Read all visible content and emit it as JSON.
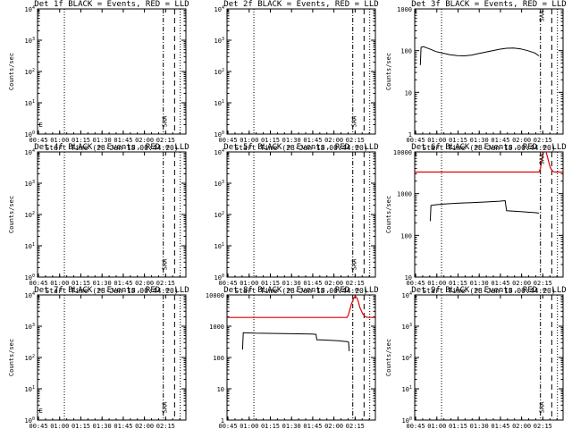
{
  "colors": {
    "events": "#000000",
    "lld": "#e00000",
    "axes": "#000000",
    "background": "#ffffff"
  },
  "x_tick_labels": [
    "00:45",
    "01:00",
    "01:15",
    "01:30",
    "01:45",
    "02:00",
    "02:15"
  ],
  "x_label": "Start Time (28-Jan-18 00:44:20)",
  "y_label": "Counts/sec",
  "chart_data": [
    {
      "type": "line",
      "title": "Det 1f BLACK = Events, RED = LLD",
      "xlabel": "Start Time (28-Jan-18 00:44:20)",
      "ylabel": "Counts/sec",
      "x_unit": "minutes since 00:44:20",
      "xlim": [
        0,
        105
      ],
      "y_scale": "log",
      "ylim": [
        1,
        10000
      ],
      "y_tick_labels": [
        "10^0",
        "10^1",
        "10^2",
        "10^3",
        "10^4"
      ],
      "legend": "none",
      "vlines": [
        {
          "x": 19,
          "style": "dotted"
        },
        {
          "x": 89,
          "style": "dashdot"
        },
        {
          "x": 97,
          "style": "dashed"
        },
        {
          "x": 101,
          "style": "dotted"
        }
      ],
      "annotations": [
        {
          "text": "SAA",
          "x": 89
        },
        {
          "text": "E",
          "x": 0.5
        }
      ],
      "series": []
    },
    {
      "type": "line",
      "title": "Det 2f BLACK = Events, RED = LLD",
      "xlabel": "Start Time (28-Jan-18 00:44:20)",
      "ylabel": "",
      "x_unit": "minutes since 00:44:20",
      "xlim": [
        0,
        105
      ],
      "y_scale": "log",
      "ylim": [
        1,
        10000
      ],
      "y_tick_labels": [
        "10^0",
        "10^1",
        "10^2",
        "10^3",
        "10^4"
      ],
      "legend": "none",
      "vlines": [
        {
          "x": 19,
          "style": "dotted"
        },
        {
          "x": 89,
          "style": "dashdot"
        },
        {
          "x": 97,
          "style": "dashed"
        },
        {
          "x": 101,
          "style": "dotted"
        }
      ],
      "annotations": [
        {
          "text": "SAA",
          "x": 89
        }
      ],
      "series": []
    },
    {
      "type": "line",
      "title": "Det 3f BLACK = Events, RED = LLD",
      "xlabel": "Start Time (28-Jan-18 00:44:20)",
      "ylabel": "Counts/sec",
      "x_unit": "minutes since 00:44:20",
      "xlim": [
        0,
        105
      ],
      "y_scale": "log",
      "ylim": [
        1,
        1000
      ],
      "y_tick_labels": [
        "1",
        "10",
        "100",
        "1000"
      ],
      "legend": "none",
      "vlines": [
        {
          "x": 19,
          "style": "dotted"
        },
        {
          "x": 89,
          "style": "dashdot"
        },
        {
          "x": 97,
          "style": "dashed"
        },
        {
          "x": 101,
          "style": "dotted"
        }
      ],
      "annotations": [
        {
          "text": "SAA",
          "x": 89
        }
      ],
      "series": [
        {
          "color": "#000000",
          "x": [
            4,
            4.5,
            6,
            9,
            12,
            15,
            20,
            25,
            30,
            35,
            40,
            45,
            50,
            55,
            60,
            65,
            70,
            75,
            80,
            85,
            88
          ],
          "y": [
            45,
            120,
            125,
            115,
            105,
            95,
            87,
            80,
            76,
            75,
            78,
            85,
            92,
            100,
            108,
            114,
            116,
            110,
            100,
            88,
            75
          ]
        }
      ]
    },
    {
      "type": "line",
      "title": "Det 4f BLACK = Events, RED = LLD",
      "xlabel": "Start Time (28-Jan-18 00:44:20)",
      "ylabel": "Counts/sec",
      "x_unit": "minutes since 00:44:20",
      "xlim": [
        0,
        105
      ],
      "y_scale": "log",
      "ylim": [
        1,
        10000
      ],
      "y_tick_labels": [
        "10^0",
        "10^1",
        "10^2",
        "10^3",
        "10^4"
      ],
      "legend": "none",
      "vlines": [
        {
          "x": 19,
          "style": "dotted"
        },
        {
          "x": 89,
          "style": "dashdot"
        },
        {
          "x": 97,
          "style": "dashed"
        },
        {
          "x": 101,
          "style": "dotted"
        }
      ],
      "annotations": [
        {
          "text": "SAA",
          "x": 89
        }
      ],
      "series": []
    },
    {
      "type": "line",
      "title": "Det 5f BLACK = Events, RED = LLD",
      "xlabel": "Start Time (28-Jan-18 00:44:20)",
      "ylabel": "",
      "x_unit": "minutes since 00:44:20",
      "xlim": [
        0,
        105
      ],
      "y_scale": "log",
      "ylim": [
        1,
        10000
      ],
      "y_tick_labels": [
        "10^0",
        "10^1",
        "10^2",
        "10^3",
        "10^4"
      ],
      "legend": "none",
      "vlines": [
        {
          "x": 19,
          "style": "dotted"
        },
        {
          "x": 89,
          "style": "dashdot"
        },
        {
          "x": 97,
          "style": "dashed"
        },
        {
          "x": 101,
          "style": "dotted"
        }
      ],
      "annotations": [
        {
          "text": "SAA",
          "x": 89
        }
      ],
      "series": []
    },
    {
      "type": "line",
      "title": "Det 6f BLACK = Events, RED = LLD",
      "xlabel": "Start Time (28-Jan-18 00:44:20)",
      "ylabel": "Counts/sec",
      "x_unit": "minutes since 00:44:20",
      "xlim": [
        0,
        105
      ],
      "y_scale": "log",
      "ylim": [
        10,
        10000
      ],
      "y_tick_labels": [
        "10",
        "100",
        "1000",
        "10000"
      ],
      "legend": "none",
      "vlines": [
        {
          "x": 19,
          "style": "dotted"
        },
        {
          "x": 89,
          "style": "dashdot"
        },
        {
          "x": 97,
          "style": "dashed"
        },
        {
          "x": 101,
          "style": "dotted"
        }
      ],
      "annotations": [
        {
          "text": "SAA",
          "x": 89
        }
      ],
      "series": [
        {
          "color": "#e00000",
          "x": [
            0,
            88,
            89,
            90,
            91,
            92,
            93,
            94,
            95,
            96,
            97,
            98,
            99,
            100,
            103,
            105
          ],
          "y": [
            3300,
            3300,
            4000,
            6500,
            9500,
            11000,
            10000,
            7500,
            5500,
            4200,
            3700,
            3400,
            3300,
            3300,
            3300,
            3300
          ]
        },
        {
          "color": "#000000",
          "x": [
            11,
            11.5,
            14,
            20,
            30,
            40,
            50,
            60,
            64,
            65,
            70,
            75,
            80,
            85,
            88
          ],
          "y": [
            220,
            520,
            540,
            560,
            590,
            610,
            630,
            660,
            680,
            390,
            380,
            370,
            360,
            350,
            340
          ]
        }
      ]
    },
    {
      "type": "line",
      "title": "Det 7f BLACK = Events, RED = LLD",
      "xlabel": "Start Time (28-Jan-18 00:44:20)",
      "ylabel": "Counts/sec",
      "x_unit": "minutes since 00:44:20",
      "xlim": [
        0,
        105
      ],
      "y_scale": "log",
      "ylim": [
        1,
        10000
      ],
      "y_tick_labels": [
        "10^0",
        "10^1",
        "10^2",
        "10^3",
        "10^4"
      ],
      "legend": "none",
      "vlines": [
        {
          "x": 19,
          "style": "dotted"
        },
        {
          "x": 89,
          "style": "dashdot"
        },
        {
          "x": 97,
          "style": "dashed"
        },
        {
          "x": 101,
          "style": "dotted"
        }
      ],
      "annotations": [
        {
          "text": "SAA",
          "x": 89
        },
        {
          "text": "E",
          "x": 0.5
        }
      ],
      "series": []
    },
    {
      "type": "line",
      "title": "Det 8f BLACK = Events, RED = LLD",
      "xlabel": "Start Time (28-Jan-18 00:44:20)",
      "ylabel": "",
      "x_unit": "minutes since 00:44:20",
      "xlim": [
        0,
        105
      ],
      "y_scale": "log",
      "ylim": [
        1,
        10000
      ],
      "y_tick_labels": [
        "1",
        "10",
        "100",
        "1000",
        "10000"
      ],
      "legend": "none",
      "vlines": [
        {
          "x": 19,
          "style": "dotted"
        },
        {
          "x": 89,
          "style": "dashdot"
        },
        {
          "x": 97,
          "style": "dashed"
        },
        {
          "x": 101,
          "style": "dotted"
        }
      ],
      "annotations": [],
      "series": [
        {
          "color": "#e00000",
          "x": [
            0,
            85,
            86,
            88,
            90,
            91,
            92,
            93,
            94,
            96,
            98,
            100,
            103,
            105
          ],
          "y": [
            1900,
            1900,
            2400,
            5000,
            8500,
            9000,
            8000,
            6000,
            4000,
            2500,
            2000,
            1900,
            1900,
            1900
          ]
        },
        {
          "color": "#000000",
          "x": [
            11,
            11.5,
            15,
            20,
            30,
            40,
            50,
            60,
            63,
            63.5,
            70,
            80,
            85,
            86,
            86.5
          ],
          "y": [
            180,
            620,
            610,
            600,
            590,
            580,
            570,
            560,
            550,
            370,
            360,
            340,
            320,
            310,
            160
          ]
        }
      ]
    },
    {
      "type": "line",
      "title": "Det 9f BLACK = Events, RED = LLD",
      "xlabel": "Start Time (28-Jan-18 00:44:20)",
      "ylabel": "Counts/sec",
      "x_unit": "minutes since 00:44:20",
      "xlim": [
        0,
        105
      ],
      "y_scale": "log",
      "ylim": [
        1,
        10000
      ],
      "y_tick_labels": [
        "10^0",
        "10^1",
        "10^2",
        "10^3",
        "10^4"
      ],
      "legend": "none",
      "vlines": [
        {
          "x": 19,
          "style": "dotted"
        },
        {
          "x": 89,
          "style": "dashdot"
        },
        {
          "x": 97,
          "style": "dashed"
        },
        {
          "x": 101,
          "style": "dotted"
        }
      ],
      "annotations": [
        {
          "text": "SAA",
          "x": 89
        }
      ],
      "series": []
    }
  ]
}
